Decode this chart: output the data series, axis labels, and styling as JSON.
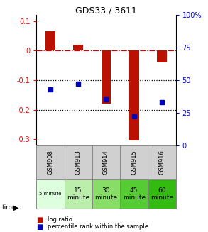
{
  "title": "GDS33 / 3611",
  "samples": [
    "GSM908",
    "GSM913",
    "GSM914",
    "GSM915",
    "GSM916"
  ],
  "log_ratios": [
    0.065,
    0.02,
    -0.18,
    -0.305,
    -0.04
  ],
  "percentile_ranks": [
    43,
    47,
    35,
    22,
    33
  ],
  "ylim_left": [
    -0.32,
    0.12
  ],
  "ylim_right": [
    0,
    100
  ],
  "bar_color": "#bb1100",
  "dot_color": "#0000bb",
  "dashed_color": "#cc0000",
  "bg_color": "#d0d0d0",
  "dotted_vals": [
    -0.1,
    -0.2
  ],
  "right_ticks": [
    0,
    25,
    50,
    75,
    100
  ],
  "left_ticks": [
    -0.3,
    -0.2,
    -0.1,
    0.0,
    0.1
  ],
  "bar_width": 0.35,
  "time_labels": [
    "5 minute",
    "15\nminute",
    "30\nminute",
    "45\nminute",
    "60\nminute"
  ],
  "time_colors": [
    "#ddffdd",
    "#bbeeaa",
    "#88dd66",
    "#55cc33",
    "#33bb11"
  ]
}
